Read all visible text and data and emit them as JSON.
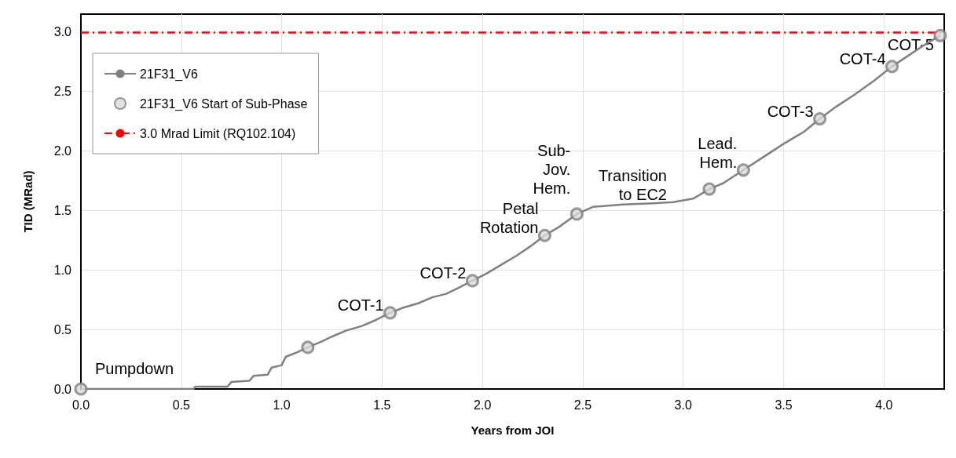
{
  "chart_data": {
    "type": "line",
    "xlabel": "Years from JOI",
    "ylabel": "TID (MRad)",
    "xlim": [
      0,
      4.3
    ],
    "ylim": [
      0,
      3.15
    ],
    "xticks": [
      {
        "value": 0,
        "label": "0.0"
      },
      {
        "value": 0.5,
        "label": "0.5"
      },
      {
        "value": 1,
        "label": "1.0"
      },
      {
        "value": 1.5,
        "label": "1.5"
      },
      {
        "value": 2,
        "label": "2.0"
      },
      {
        "value": 2.5,
        "label": "2.5"
      },
      {
        "value": 3,
        "label": "3.0"
      },
      {
        "value": 3.5,
        "label": "3.5"
      },
      {
        "value": 4,
        "label": "4.0"
      }
    ],
    "yticks": [
      {
        "value": 0,
        "label": "0.0"
      },
      {
        "value": 0.5,
        "label": "0.5"
      },
      {
        "value": 1,
        "label": "1.0"
      },
      {
        "value": 1.5,
        "label": "1.5"
      },
      {
        "value": 2,
        "label": "2.0"
      },
      {
        "value": 2.5,
        "label": "2.5"
      },
      {
        "value": 3,
        "label": "3.0"
      }
    ],
    "grid": true,
    "legend": "top left",
    "series": [
      {
        "name": "21F31_V6",
        "color": "#808080",
        "marker": "none",
        "line_style": "solid",
        "x": [
          0,
          0.56,
          0.57,
          0.73,
          0.75,
          0.84,
          0.86,
          0.93,
          0.95,
          1.0,
          1.02,
          1.08,
          1.13,
          1.2,
          1.25,
          1.32,
          1.4,
          1.47,
          1.54,
          1.6,
          1.68,
          1.75,
          1.82,
          1.88,
          1.95,
          2.02,
          2.1,
          2.17,
          2.24,
          2.31,
          2.38,
          2.47,
          2.55,
          2.7,
          2.85,
          2.95,
          3.05,
          3.13,
          3.2,
          3.3,
          3.4,
          3.5,
          3.6,
          3.68,
          3.76,
          3.85,
          3.95,
          4.04,
          4.12,
          4.2,
          4.28
        ],
        "values": [
          0,
          0,
          0.02,
          0.02,
          0.06,
          0.07,
          0.11,
          0.12,
          0.18,
          0.2,
          0.27,
          0.31,
          0.35,
          0.4,
          0.44,
          0.49,
          0.53,
          0.58,
          0.64,
          0.68,
          0.72,
          0.77,
          0.8,
          0.85,
          0.91,
          0.97,
          1.05,
          1.12,
          1.2,
          1.29,
          1.36,
          1.47,
          1.53,
          1.55,
          1.56,
          1.57,
          1.6,
          1.68,
          1.73,
          1.84,
          1.95,
          2.06,
          2.16,
          2.27,
          2.37,
          2.47,
          2.59,
          2.71,
          2.8,
          2.89,
          2.97
        ]
      },
      {
        "name": "21F31_V6 Start of Sub-Phase",
        "type": "scatter",
        "color": "#808080",
        "marker": "circle",
        "x": [
          0,
          1.13,
          1.54,
          1.95,
          2.31,
          2.47,
          3.13,
          3.3,
          3.68,
          4.04,
          4.28
        ],
        "values": [
          0,
          0.35,
          0.64,
          0.91,
          1.29,
          1.47,
          1.68,
          1.84,
          2.27,
          2.71,
          2.97
        ]
      }
    ],
    "ref_lines": [
      {
        "axis": "y",
        "value": 3.0,
        "label": "3.0 Mrad Limit (RQ102.104)",
        "color": "#ff0000",
        "line_style": "dashed"
      }
    ],
    "annotations": [
      {
        "text": "Pumpdown",
        "x": 0,
        "y": 0
      },
      {
        "text": "COT-1",
        "x": 1.54,
        "y": 0.64
      },
      {
        "text": "COT-2",
        "x": 1.95,
        "y": 0.91
      },
      {
        "text": "Petal\nRotation",
        "x": 2.31,
        "y": 1.29
      },
      {
        "text": "Sub-\nJov.\nHem.",
        "x": 2.47,
        "y": 1.47
      },
      {
        "text": "Transition\nto EC2",
        "x": 2.95,
        "y": 1.57
      },
      {
        "text": "Lead.\nHem.",
        "x": 3.3,
        "y": 1.84
      },
      {
        "text": "COT-3",
        "x": 3.68,
        "y": 2.27
      },
      {
        "text": "COT-4",
        "x": 4.04,
        "y": 2.71
      },
      {
        "text": "COT-5",
        "x": 4.28,
        "y": 2.97
      }
    ]
  }
}
